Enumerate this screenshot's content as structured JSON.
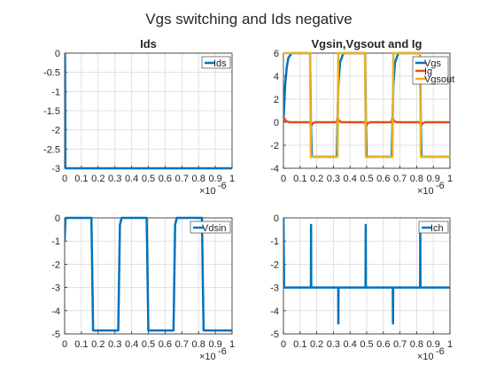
{
  "figure_title": "Vgs switching and Ids negative",
  "chart_data": [
    {
      "type": "line",
      "title": "Ids",
      "x_exponent_label": "×10",
      "x_exponent": "-6",
      "xlim": [
        0,
        1
      ],
      "ylim": [
        -3,
        0
      ],
      "xticks": [
        "0",
        "0.1",
        "0.2",
        "0.3",
        "0.4",
        "0.5",
        "0.6",
        "0.7",
        "0.8",
        "0.9",
        "1"
      ],
      "yticks": [
        "0",
        "-0.5",
        "-1",
        "-1.5",
        "-2",
        "-2.5",
        "-3"
      ],
      "ytick_values": [
        0,
        -0.5,
        -1,
        -1.5,
        -2,
        -2.5,
        -3
      ],
      "grid": true,
      "legend_position": "top-right",
      "series": [
        {
          "name": "Ids",
          "color": "#0072BD",
          "x": [
            0,
            0.002,
            0.004,
            1
          ],
          "y": [
            0,
            -0.1,
            -3,
            -3
          ]
        }
      ]
    },
    {
      "type": "line",
      "title": "Vgsin,Vgsout and Ig",
      "x_exponent_label": "×10",
      "x_exponent": "-6",
      "xlim": [
        0,
        1
      ],
      "ylim": [
        -4,
        6
      ],
      "xticks": [
        "0",
        "0.1",
        "0.2",
        "0.3",
        "0.4",
        "0.5",
        "0.6",
        "0.7",
        "0.8",
        "0.9",
        "1"
      ],
      "yticks": [
        "6",
        "4",
        "2",
        "0",
        "-2",
        "-4"
      ],
      "ytick_values": [
        6,
        4,
        2,
        0,
        -2,
        -4
      ],
      "grid": true,
      "legend_position": "top-right",
      "series": [
        {
          "name": "Vgs",
          "color": "#0072BD",
          "x": [
            0,
            0.01,
            0.02,
            0.03,
            0.05,
            0.16,
            0.165,
            0.17,
            0.32,
            0.33,
            0.34,
            0.36,
            0.49,
            0.495,
            0.5,
            0.65,
            0.66,
            0.67,
            0.69,
            0.82,
            0.825,
            0.83,
            1.0
          ],
          "y": [
            0,
            3.2,
            4.8,
            5.6,
            6,
            6,
            0,
            -3,
            -3,
            3.2,
            5.2,
            6,
            6,
            0,
            -3,
            -3,
            3.2,
            5.2,
            6,
            6,
            0,
            -3,
            -3
          ]
        },
        {
          "name": "Ig",
          "color": "#D95319",
          "x": [
            0,
            0.01,
            0.02,
            0.04,
            0.16,
            0.165,
            0.175,
            0.19,
            0.32,
            0.325,
            0.335,
            0.35,
            0.49,
            0.495,
            0.505,
            0.52,
            0.65,
            0.655,
            0.665,
            0.68,
            0.82,
            0.825,
            0.835,
            0.85,
            1.0
          ],
          "y": [
            0.5,
            0.2,
            0.05,
            0,
            0,
            -0.4,
            -0.1,
            0,
            0,
            0.4,
            0.1,
            0,
            0,
            -0.4,
            -0.1,
            0,
            0,
            0.4,
            0.1,
            0,
            0,
            -0.4,
            -0.1,
            0,
            0
          ]
        },
        {
          "name": "Vgsout",
          "color": "#EDB120",
          "x": [
            0,
            0.16,
            0.165,
            0.325,
            0.33,
            0.49,
            0.495,
            0.655,
            0.66,
            0.82,
            0.825,
            1.0
          ],
          "y": [
            6,
            6,
            -3,
            -3,
            6,
            6,
            -3,
            -3,
            6,
            6,
            -3,
            -3
          ]
        }
      ]
    },
    {
      "type": "line",
      "title": "",
      "x_exponent_label": "×10",
      "x_exponent": "-6",
      "xlim": [
        0,
        1
      ],
      "ylim": [
        -5,
        0
      ],
      "xticks": [
        "0",
        "0.1",
        "0.2",
        "0.3",
        "0.4",
        "0.5",
        "0.6",
        "0.7",
        "0.8",
        "0.9",
        "1"
      ],
      "yticks": [
        "0",
        "-1",
        "-2",
        "-3",
        "-4",
        "-5"
      ],
      "ytick_values": [
        0,
        -1,
        -2,
        -3,
        -4,
        -5
      ],
      "grid": true,
      "legend_position": "top-right",
      "series": [
        {
          "name": "Vdsin",
          "color": "#0072BD",
          "x": [
            0,
            0.004,
            0.008,
            0.16,
            0.165,
            0.17,
            0.32,
            0.33,
            0.34,
            0.49,
            0.495,
            0.5,
            0.65,
            0.66,
            0.67,
            0.82,
            0.825,
            0.83,
            1.0
          ],
          "y": [
            -1,
            -0.1,
            0,
            0,
            -2.5,
            -4.85,
            -4.85,
            -0.3,
            0,
            0,
            -2.5,
            -4.85,
            -4.85,
            -0.3,
            0,
            0,
            -2.5,
            -4.85,
            -4.85
          ]
        }
      ]
    },
    {
      "type": "line",
      "title": "",
      "x_exponent_label": "×10",
      "x_exponent": "-6",
      "xlim": [
        0,
        1
      ],
      "ylim": [
        -5,
        0
      ],
      "xticks": [
        "0",
        "0.1",
        "0.2",
        "0.3",
        "0.4",
        "0.5",
        "0.6",
        "0.7",
        "0.8",
        "0.9",
        "1"
      ],
      "yticks": [
        "0",
        "-1",
        "-2",
        "-3",
        "-4",
        "-5"
      ],
      "ytick_values": [
        0,
        -1,
        -2,
        -3,
        -4,
        -5
      ],
      "grid": true,
      "legend_position": "top-right",
      "series": [
        {
          "name": "Ich",
          "color": "#0072BD",
          "x": [
            0,
            0.002,
            0.004,
            0.165,
            0.166,
            0.167,
            0.168,
            0.329,
            0.33,
            0.331,
            0.332,
            0.493,
            0.494,
            0.495,
            0.496,
            0.657,
            0.658,
            0.659,
            0.66,
            0.821,
            0.822,
            0.823,
            0.824,
            1.0
          ],
          "y": [
            0,
            -1.5,
            -3,
            -3,
            -0.3,
            -3,
            -3,
            -3,
            -4.55,
            -3,
            -3,
            -3,
            -0.3,
            -3,
            -3,
            -3,
            -4.55,
            -3,
            -3,
            -3,
            -0.3,
            -3,
            -3,
            -3
          ]
        }
      ]
    }
  ]
}
